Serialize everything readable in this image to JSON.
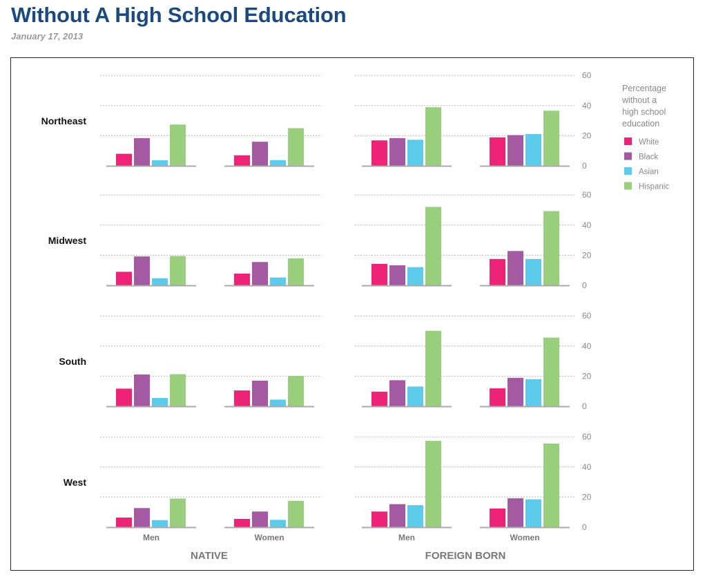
{
  "header": {
    "title": "Without A High School Education",
    "date": "January 17, 2013"
  },
  "chart_data": {
    "type": "bar",
    "title": "Without A High School Education",
    "subtitle": "January 17, 2013",
    "ylabel": "Percentage without a high school education",
    "ylim": [
      0,
      60
    ],
    "yticks": [
      0,
      20,
      40,
      60
    ],
    "grid": true,
    "legend_position": "top-right",
    "legend_title": "Percentage without a high school education",
    "series_names": [
      "White",
      "Black",
      "Asian",
      "Hispanic"
    ],
    "colors": {
      "White": "#ee2277",
      "Black": "#a45aa2",
      "Asian": "#5ccbeb",
      "Hispanic": "#98ce7c"
    },
    "groups": [
      "NATIVE",
      "FOREIGN BORN"
    ],
    "sexes": [
      "Men",
      "Women"
    ],
    "regions": [
      {
        "name": "Northeast",
        "values": {
          "NATIVE": {
            "Men": [
              8,
              18.4,
              3.7,
              27.4
            ],
            "Women": [
              7,
              16,
              3.8,
              25
            ]
          },
          "FOREIGN BORN": {
            "Men": [
              16.9,
              18.4,
              17.3,
              38.9
            ],
            "Women": [
              18.9,
              20.4,
              21.1,
              36.6
            ]
          }
        }
      },
      {
        "name": "Midwest",
        "values": {
          "NATIVE": {
            "Men": [
              9,
              19.2,
              4.7,
              19.5
            ],
            "Women": [
              7.8,
              15.5,
              5.2,
              17.9
            ]
          },
          "FOREIGN BORN": {
            "Men": [
              14.3,
              13.3,
              12.1,
              52.1
            ],
            "Women": [
              17.5,
              22.8,
              17.5,
              49.3
            ]
          }
        }
      },
      {
        "name": "South",
        "values": {
          "NATIVE": {
            "Men": [
              11.7,
              21.1,
              5.5,
              21.3
            ],
            "Women": [
              10.5,
              17,
              4.4,
              20.1
            ]
          },
          "FOREIGN BORN": {
            "Men": [
              9.7,
              17.3,
              13.1,
              50.1
            ],
            "Women": [
              11.9,
              18.9,
              18,
              45.6
            ]
          }
        }
      },
      {
        "name": "West",
        "values": {
          "NATIVE": {
            "Men": [
              6.4,
              12.7,
              4.7,
              19
            ],
            "Women": [
              5.5,
              10.4,
              4.9,
              17.5
            ]
          },
          "FOREIGN BORN": {
            "Men": [
              10.4,
              15.3,
              14.6,
              57.3
            ],
            "Women": [
              12.4,
              19.2,
              18.5,
              55.5
            ]
          }
        }
      }
    ]
  }
}
